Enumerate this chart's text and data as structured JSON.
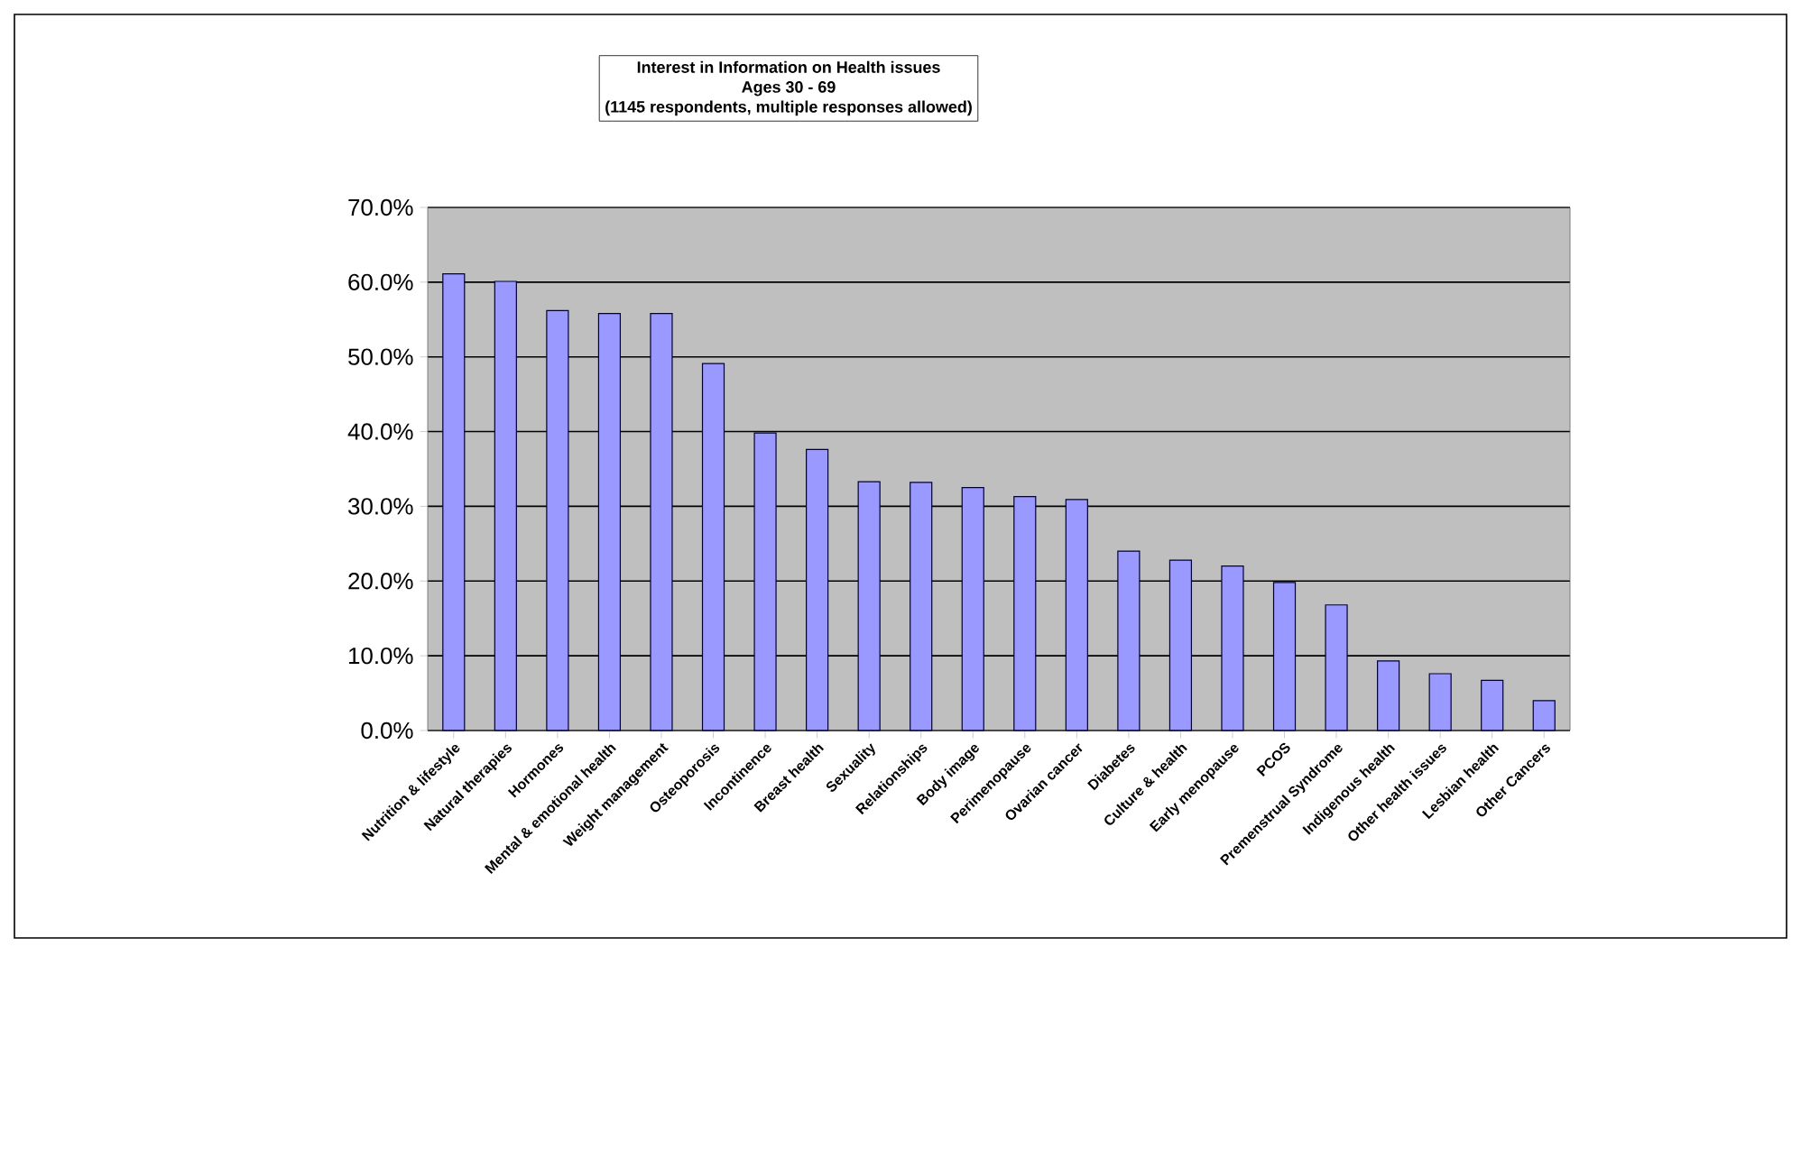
{
  "chart_data": {
    "type": "bar",
    "title": "Interest in Information on Health issues",
    "subtitle": "Ages 30 - 69",
    "annotations": [
      "(1145 respondents, multiple responses allowed)"
    ],
    "categories": [
      "Nutrition & lifestyle",
      "Natural therapies",
      "Hormones",
      "Mental & emotional health",
      "Weight management",
      "Osteoporosis",
      "Incontinence",
      "Breast health",
      "Sexuality",
      "Relationships",
      "Body image",
      "Perimenopause",
      "Ovarian cancer",
      "Diabetes",
      "Culture & health",
      "Early menopause",
      "PCOS",
      "Premenstrual Syndrome",
      "Indigenous health",
      "Other health issues",
      "Lesbian health",
      "Other Cancers"
    ],
    "values": [
      61.1,
      60.1,
      56.2,
      55.8,
      55.8,
      49.1,
      39.8,
      37.6,
      33.3,
      33.2,
      32.5,
      31.3,
      30.9,
      24.0,
      22.8,
      22.0,
      19.8,
      16.8,
      9.3,
      7.6,
      6.7,
      4.0
    ],
    "color": "#9999ff",
    "ylim": [
      0,
      70
    ],
    "yticks": [
      {
        "value": 0,
        "label": "0.0%"
      },
      {
        "value": 10,
        "label": "10.0%"
      },
      {
        "value": 20,
        "label": "20.0%"
      },
      {
        "value": 30,
        "label": "30.0%"
      },
      {
        "value": 40,
        "label": "40.0%"
      },
      {
        "value": 50,
        "label": "50.0%"
      },
      {
        "value": 60,
        "label": "60.0%"
      },
      {
        "value": 70,
        "label": "70.0%"
      }
    ],
    "grid": "y"
  }
}
